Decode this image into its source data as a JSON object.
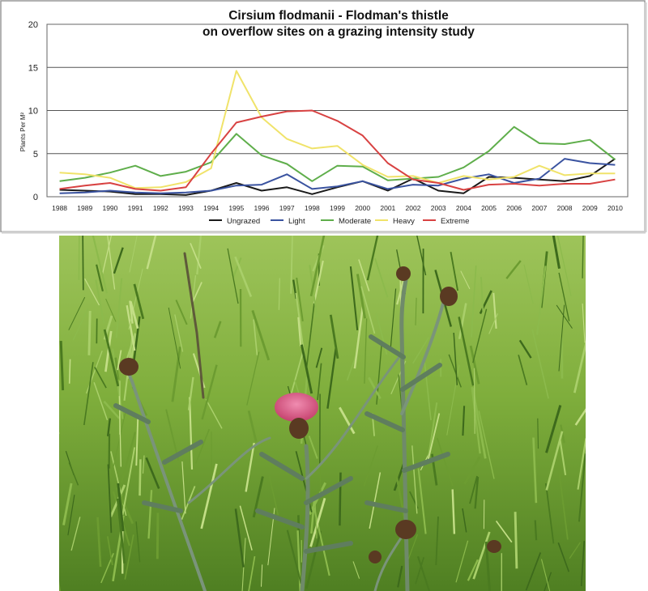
{
  "chart_data": {
    "type": "line",
    "title": "Cirsium flodmanii  -  Flodman's thistle",
    "subtitle": "on overflow sites on a grazing intensity study",
    "xlabel": "",
    "ylabel": "Plants Per M²",
    "ylim": [
      0,
      20
    ],
    "yticks": [
      "0",
      "5",
      "10",
      "15",
      "20"
    ],
    "grid": true,
    "legend": "bottom",
    "categories": [
      "1988",
      "1989",
      "1990",
      "1991",
      "1992",
      "1993",
      "1994",
      "1995",
      "1996",
      "1997",
      "1998",
      "1999",
      "2000",
      "2001",
      "2002",
      "2003",
      "2004",
      "2005",
      "2006",
      "2007",
      "2008",
      "2009",
      "2010"
    ],
    "series": [
      {
        "name": "Ungrazed",
        "color": "#1a1a1a",
        "values": [
          0.8,
          0.7,
          0.6,
          0.3,
          0.3,
          0.2,
          0.7,
          1.6,
          0.7,
          1.1,
          0.3,
          1.1,
          1.8,
          0.7,
          2.1,
          0.7,
          0.4,
          2.3,
          2.2,
          2.0,
          1.8,
          2.4,
          4.4
        ]
      },
      {
        "name": "Light",
        "color": "#3a53a0",
        "values": [
          0.4,
          0.5,
          0.7,
          0.5,
          0.4,
          0.5,
          0.7,
          1.3,
          1.4,
          2.6,
          0.9,
          1.2,
          1.8,
          0.9,
          1.4,
          1.3,
          2.1,
          2.6,
          1.6,
          2.1,
          4.4,
          3.9,
          3.7
        ]
      },
      {
        "name": "Moderate",
        "color": "#5fae4b",
        "values": [
          1.8,
          2.2,
          2.8,
          3.6,
          2.4,
          2.9,
          4.0,
          7.3,
          4.8,
          3.8,
          1.8,
          3.6,
          3.5,
          1.9,
          2.1,
          2.3,
          3.4,
          5.3,
          8.1,
          6.2,
          6.1,
          6.6,
          4.3
        ]
      },
      {
        "name": "Heavy",
        "color": "#f0e36a",
        "values": [
          2.8,
          2.6,
          2.2,
          1.0,
          1.1,
          1.7,
          3.3,
          14.6,
          9.2,
          6.7,
          5.6,
          5.9,
          3.7,
          2.3,
          2.4,
          1.6,
          2.4,
          2.0,
          2.3,
          3.6,
          2.5,
          2.7,
          2.7
        ]
      },
      {
        "name": "Extreme",
        "color": "#d84242",
        "values": [
          0.9,
          1.3,
          1.6,
          0.9,
          0.7,
          1.1,
          5.0,
          8.6,
          9.3,
          9.9,
          10.0,
          8.8,
          7.1,
          3.9,
          2.0,
          1.6,
          0.8,
          1.4,
          1.5,
          1.3,
          1.5,
          1.5,
          2.0
        ]
      }
    ]
  },
  "photo": {
    "subject": "Cirsium flodmanii plant in grass",
    "colors": {
      "grass": "#5f8f2c",
      "grass_light": "#9cc45a",
      "flower": "#d45a86",
      "bud": "#5a3a22",
      "stem": "#6f8a6a"
    }
  }
}
